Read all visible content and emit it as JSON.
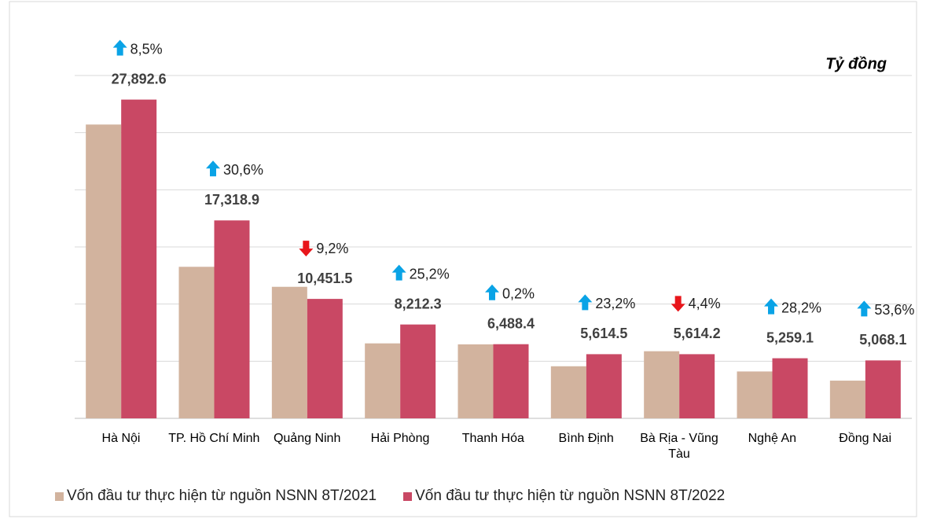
{
  "chart_data": {
    "type": "bar",
    "unit_label": "Tỷ đồng",
    "categories": [
      "Hà Nội",
      "TP. Hồ Chí Minh",
      "Quảng Ninh",
      "Hải Phòng",
      "Thanh Hóa",
      "Bình Định",
      "Bà Rịa - Vũng Tàu",
      "Nghệ An",
      "Đồng Nai"
    ],
    "series": [
      {
        "name": "Vốn đầu tư thực hiện từ nguồn NSNN 8T/2021",
        "color": "#d2b39e",
        "values": [
          25710,
          13260,
          11510,
          6560,
          6475,
          4557,
          5873,
          4102,
          3300
        ]
      },
      {
        "name": "Vốn đầu tư thực hiện từ nguồn NSNN 8T/2022",
        "color": "#c94864",
        "values": [
          27892.6,
          17318.9,
          10451.5,
          8212.3,
          6488.4,
          5614.5,
          5614.2,
          5259.1,
          5068.1
        ],
        "value_labels": [
          "27,892.6",
          "17,318.9",
          "10,451.5",
          "8,212.3",
          "6,488.4",
          "5,614.5",
          "5,614.2",
          "5,259.1",
          "5,068.1"
        ]
      }
    ],
    "changes": [
      8.5,
      30.6,
      -9.2,
      25.2,
      0.2,
      23.2,
      -4.4,
      28.2,
      53.6
    ],
    "change_labels": [
      "8,5%",
      "30,6%",
      "9,2%",
      "25,2%",
      "0,2%",
      "23,2%",
      "4,4%",
      "28,2%",
      "53,6%"
    ],
    "up_color": "#0aa3e6",
    "down_color": "#e8161b",
    "ylim": [
      0,
      30000
    ],
    "yticks": [
      0,
      5000,
      10000,
      15000,
      20000,
      25000,
      30000
    ],
    "grid": true,
    "legend": "bottom"
  }
}
